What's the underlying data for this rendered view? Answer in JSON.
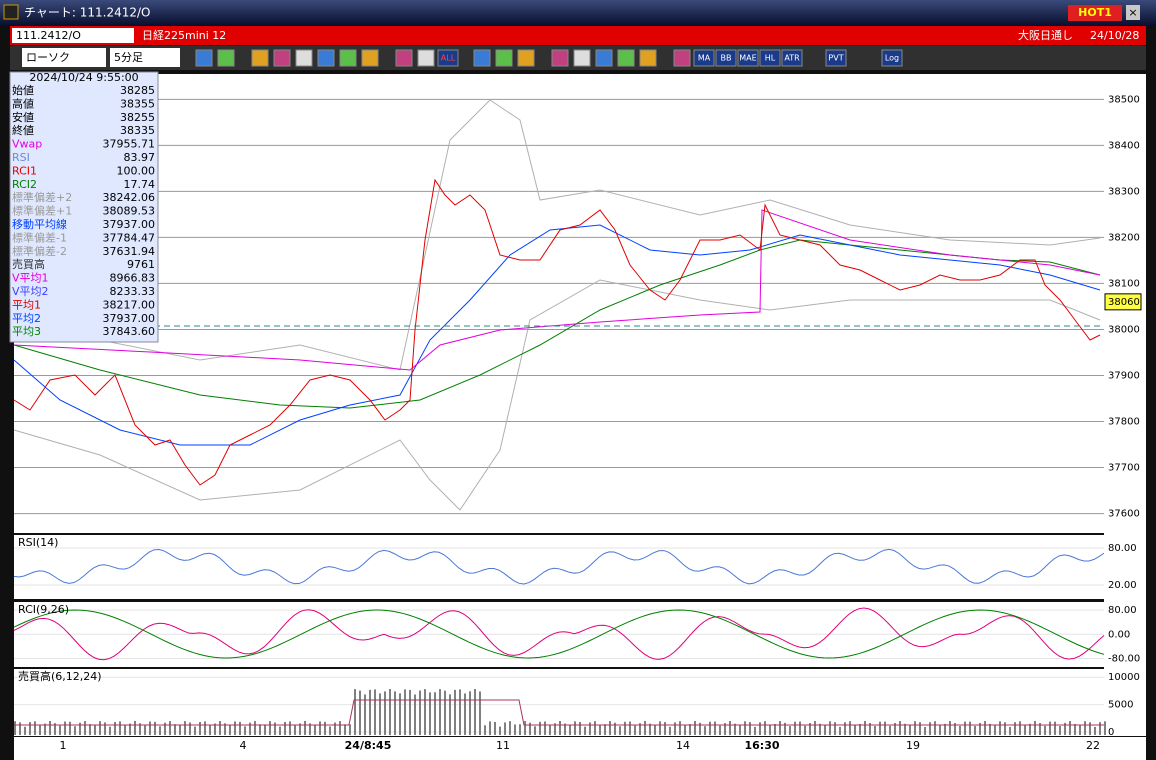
{
  "window": {
    "title": "チャート: 111.2412/O",
    "hot": "HOT1"
  },
  "header": {
    "symbol": "111.2412/O",
    "name": "日経225mini 12",
    "market": "大阪日通し",
    "date": "24/10/28"
  },
  "toolbar": {
    "chart_type": "ローソク",
    "interval": "5分足",
    "labels": [
      "ALL",
      "MA",
      "BB",
      "MAE",
      "HL",
      "ATR",
      "PVT",
      "Log"
    ]
  },
  "info": {
    "datetime": "2024/10/24 9:55:00",
    "rows": [
      {
        "label": "始値",
        "value": "38285",
        "color": "#000000"
      },
      {
        "label": "高値",
        "value": "38355",
        "color": "#000000"
      },
      {
        "label": "安値",
        "value": "38255",
        "color": "#000000"
      },
      {
        "label": "終値",
        "value": "38335",
        "color": "#000000"
      },
      {
        "label": "Vwap",
        "value": "37955.71",
        "color": "#e000e0"
      },
      {
        "label": "RSI",
        "value": "83.97",
        "color": "#6a8ad8"
      },
      {
        "label": "RCI1",
        "value": "100.00",
        "color": "#e00000"
      },
      {
        "label": "RCI2",
        "value": "17.74",
        "color": "#008000"
      },
      {
        "label": "標準偏差+2",
        "value": "38242.06",
        "color": "#9a9a9a"
      },
      {
        "label": "標準偏差+1",
        "value": "38089.53",
        "color": "#9a9a9a"
      },
      {
        "label": "移動平均線",
        "value": "37937.00",
        "color": "#0040ff"
      },
      {
        "label": "標準偏差-1",
        "value": "37784.47",
        "color": "#9a9a9a"
      },
      {
        "label": "標準偏差-2",
        "value": "37631.94",
        "color": "#9a9a9a"
      },
      {
        "label": "売買高",
        "value": "9761",
        "color": "#333333"
      },
      {
        "label": "V平均1",
        "value": "8966.83",
        "color": "#e000e0"
      },
      {
        "label": "V平均2",
        "value": "8233.33",
        "color": "#4040ff"
      },
      {
        "label": "平均1",
        "value": "38217.00",
        "color": "#e00000"
      },
      {
        "label": "平均2",
        "value": "37937.00",
        "color": "#0040ff"
      },
      {
        "label": "平均3",
        "value": "37843.60",
        "color": "#008000"
      }
    ]
  },
  "main": {
    "ylim": [
      37560,
      38555
    ],
    "yticks": [
      37600,
      37700,
      37800,
      37900,
      38000,
      38100,
      38200,
      38300,
      38400,
      38500
    ],
    "last_price": 38060
  },
  "rsi": {
    "title": "RSI(14)",
    "ylim": [
      -1,
      101
    ],
    "yticks": [
      {
        "value": 20,
        "label": "20.00"
      },
      {
        "value": 80,
        "label": "80.00"
      }
    ]
  },
  "rci": {
    "title": "RCI(9,26)",
    "ylim": [
      -105,
      107
    ],
    "yticks": [
      {
        "value": -80,
        "label": "-80.00"
      },
      {
        "value": 0,
        "label": "0.00"
      },
      {
        "value": 80,
        "label": "80.00"
      }
    ]
  },
  "volume": {
    "title": "売買高(6,12,24)",
    "ylim": [
      -550,
      11500
    ],
    "yticks": [
      0,
      5000,
      10000
    ]
  },
  "xaxis": {
    "labels": [
      "1",
      "4",
      "24/8:45",
      "11",
      "14",
      "16:30",
      "19",
      "22"
    ]
  }
}
